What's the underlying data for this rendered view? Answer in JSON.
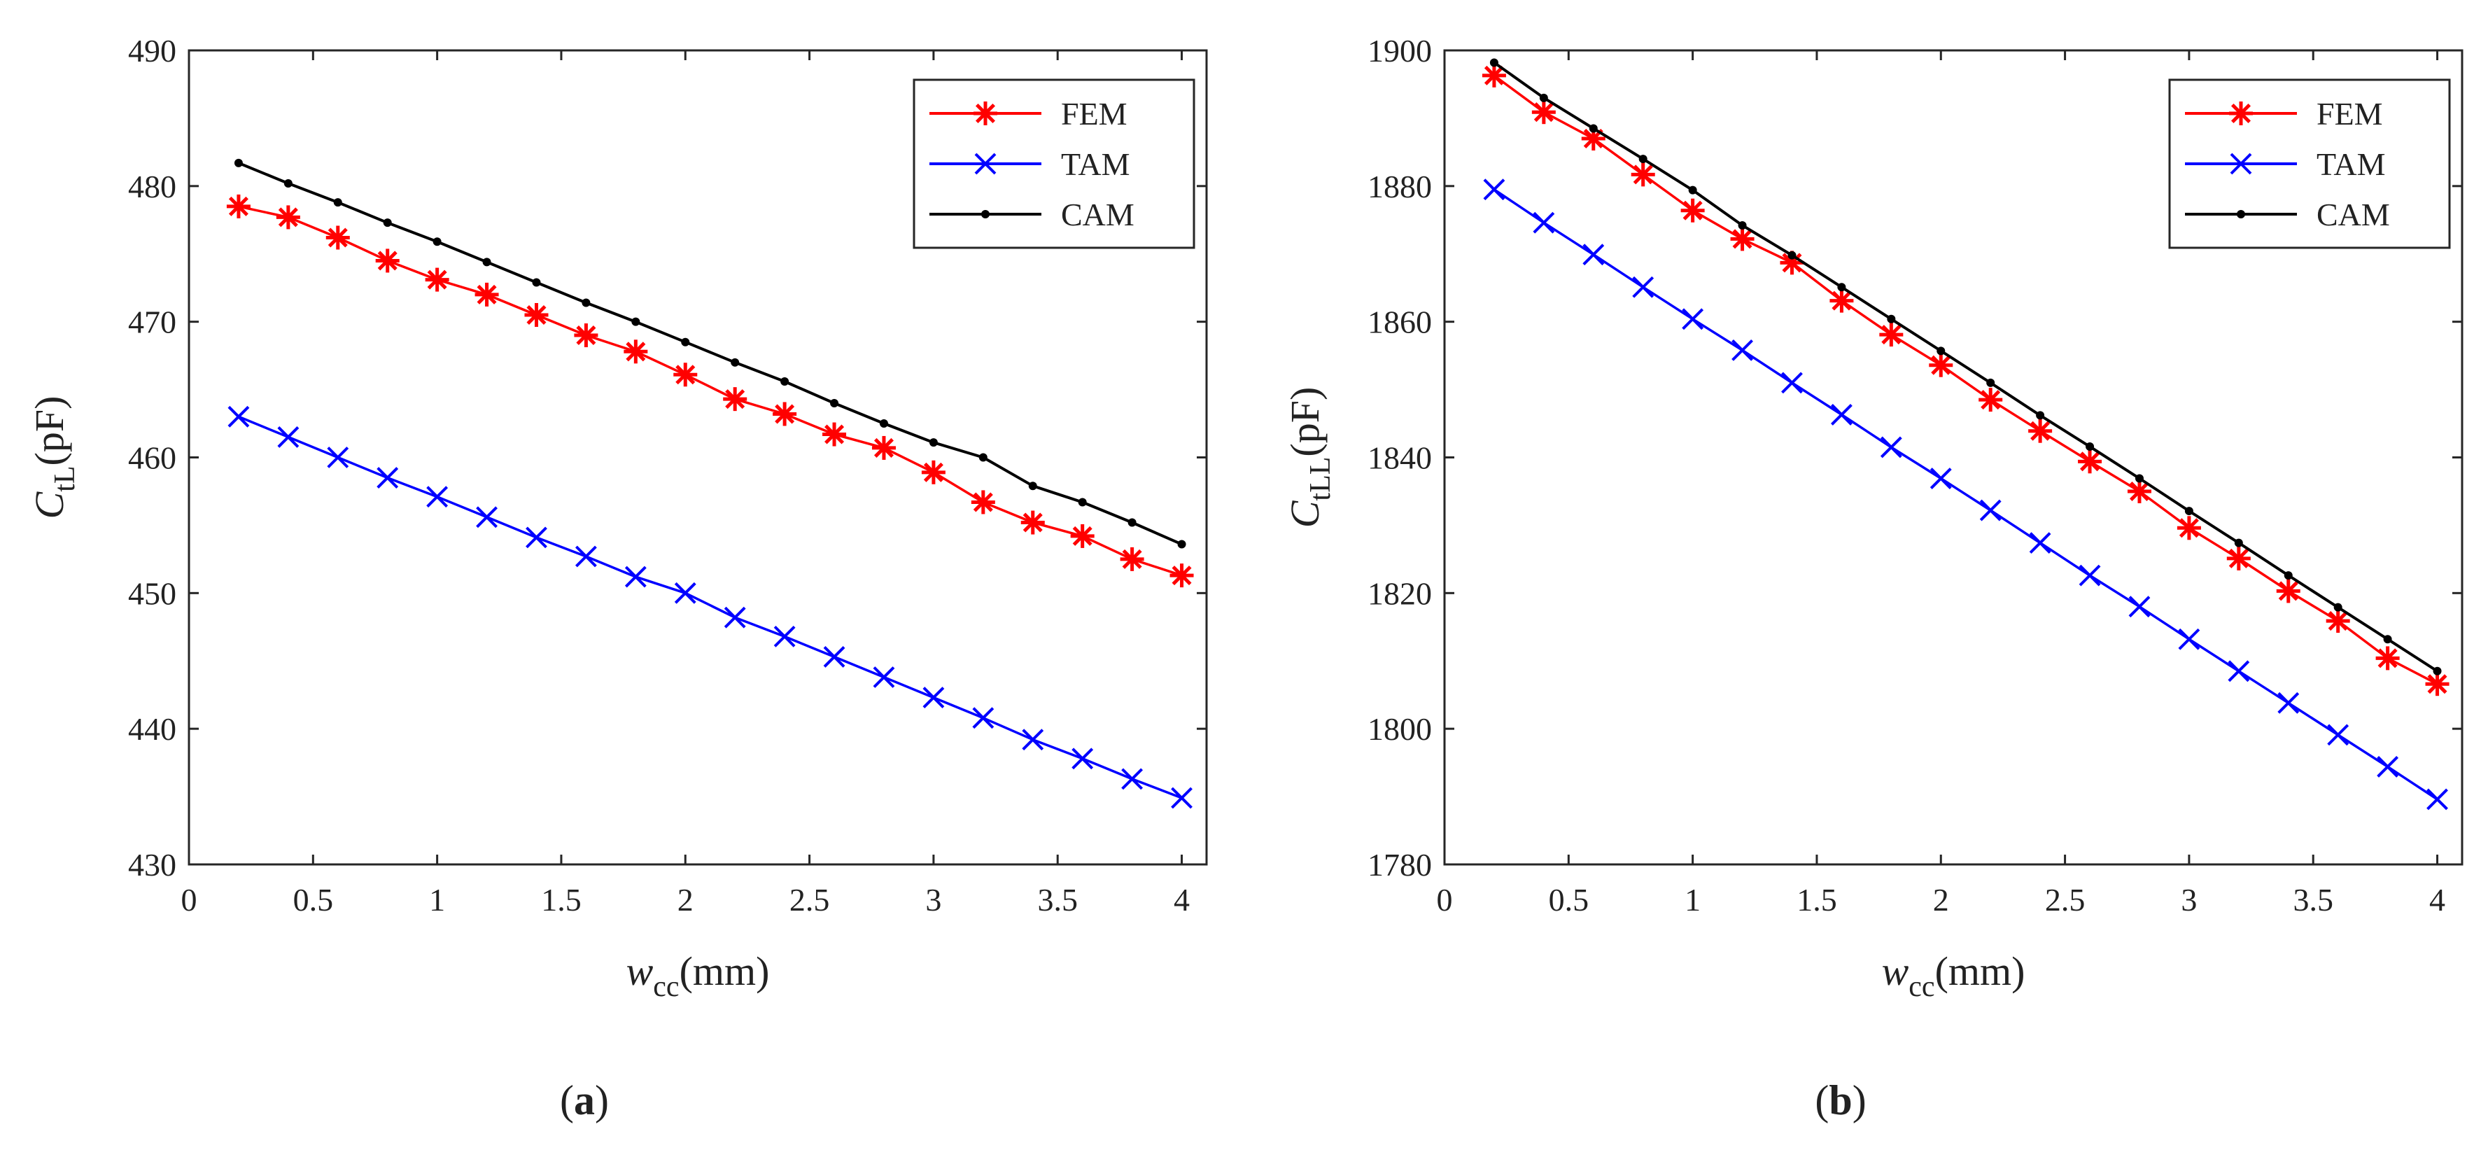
{
  "chart_data": [
    {
      "type": "line",
      "panel_label": "(a)",
      "caption_bold": "a",
      "ylabel_main": "C",
      "ylabel_sub": "tL",
      "ylabel_unit": "(pF)",
      "xlabel_main": "w",
      "xlabel_sub": "cc",
      "xlabel_unit": "(mm)",
      "xlim": [
        0,
        4.1
      ],
      "ylim": [
        430,
        490
      ],
      "xticks": [
        0,
        0.5,
        1,
        1.5,
        2,
        2.5,
        3,
        3.5,
        4
      ],
      "xtick_labels": [
        "0",
        "0.5",
        "1",
        "1.5",
        "2",
        "2.5",
        "3",
        "3.5",
        "4"
      ],
      "yticks": [
        430,
        440,
        450,
        460,
        470,
        480,
        490
      ],
      "ytick_labels": [
        "430",
        "440",
        "450",
        "460",
        "470",
        "480",
        "490"
      ],
      "legend_position": "top-right",
      "x": [
        0.2,
        0.4,
        0.6,
        0.8,
        1.0,
        1.2,
        1.4,
        1.6,
        1.8,
        2.0,
        2.2,
        2.4,
        2.6,
        2.8,
        3.0,
        3.2,
        3.4,
        3.6,
        3.8,
        4.0
      ],
      "series": [
        {
          "name": "FEM",
          "color": "#ff0000",
          "marker": "asterisk",
          "values": [
            478.5,
            477.7,
            476.2,
            474.5,
            473.1,
            472.0,
            470.5,
            469.0,
            467.8,
            466.1,
            464.3,
            463.2,
            461.7,
            460.7,
            458.9,
            456.7,
            455.2,
            454.2,
            452.5,
            451.3
          ]
        },
        {
          "name": "TAM",
          "color": "#0000ff",
          "marker": "x",
          "values": [
            463.0,
            461.5,
            460.0,
            458.5,
            457.1,
            455.6,
            454.1,
            452.7,
            451.2,
            450.0,
            448.2,
            446.8,
            445.3,
            443.8,
            442.3,
            440.8,
            439.2,
            437.8,
            436.3,
            434.9
          ]
        },
        {
          "name": "CAM",
          "color": "#000000",
          "marker": "dot",
          "values": [
            481.7,
            480.2,
            478.8,
            477.3,
            475.9,
            474.4,
            472.9,
            471.4,
            470.0,
            468.5,
            467.0,
            465.6,
            464.0,
            462.5,
            461.1,
            460.0,
            457.9,
            456.7,
            455.2,
            453.6
          ]
        }
      ]
    },
    {
      "type": "line",
      "panel_label": "(b)",
      "caption_bold": "b",
      "ylabel_main": "C",
      "ylabel_sub": "tLL",
      "ylabel_unit": "(pF)",
      "xlabel_main": "w",
      "xlabel_sub": "cc",
      "xlabel_unit": "(mm)",
      "xlim": [
        0,
        4.1
      ],
      "ylim": [
        1780,
        1900
      ],
      "xticks": [
        0,
        0.5,
        1,
        1.5,
        2,
        2.5,
        3,
        3.5,
        4
      ],
      "xtick_labels": [
        "0",
        "0.5",
        "1",
        "1.5",
        "2",
        "2.5",
        "3",
        "3.5",
        "4"
      ],
      "yticks": [
        1780,
        1800,
        1820,
        1840,
        1860,
        1880,
        1900
      ],
      "ytick_labels": [
        "1780",
        "1800",
        "1820",
        "1840",
        "1860",
        "1880",
        "1900"
      ],
      "legend_position": "top-right",
      "x": [
        0.2,
        0.4,
        0.6,
        0.8,
        1.0,
        1.2,
        1.4,
        1.6,
        1.8,
        2.0,
        2.2,
        2.4,
        2.6,
        2.8,
        3.0,
        3.2,
        3.4,
        3.6,
        3.8,
        4.0
      ],
      "series": [
        {
          "name": "FEM",
          "color": "#ff0000",
          "marker": "asterisk",
          "values": [
            1896.3,
            1890.9,
            1887.0,
            1881.7,
            1876.4,
            1872.2,
            1868.7,
            1863.1,
            1858.1,
            1853.6,
            1848.5,
            1843.9,
            1839.4,
            1835.0,
            1829.6,
            1825.1,
            1820.3,
            1815.9,
            1810.4,
            1806.6
          ]
        },
        {
          "name": "TAM",
          "color": "#0000ff",
          "marker": "x",
          "values": [
            1879.5,
            1874.6,
            1869.9,
            1865.1,
            1860.4,
            1855.8,
            1851.0,
            1846.3,
            1841.5,
            1836.9,
            1832.2,
            1827.4,
            1822.6,
            1818.0,
            1813.2,
            1808.5,
            1803.8,
            1799.1,
            1794.4,
            1789.6
          ]
        },
        {
          "name": "CAM",
          "color": "#000000",
          "marker": "dot",
          "values": [
            1898.2,
            1893.0,
            1888.5,
            1884.0,
            1879.4,
            1874.2,
            1869.8,
            1865.1,
            1860.4,
            1855.7,
            1851.0,
            1846.2,
            1841.6,
            1836.9,
            1832.1,
            1827.4,
            1822.6,
            1817.9,
            1813.2,
            1808.5
          ]
        }
      ]
    }
  ]
}
